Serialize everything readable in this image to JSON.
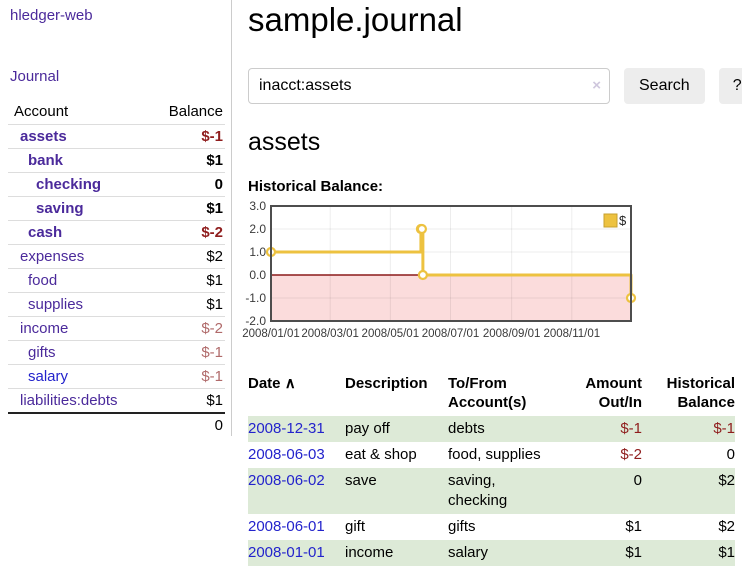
{
  "app": {
    "title": "hledger-web"
  },
  "sidebar": {
    "journal_label": "Journal",
    "accounts_table": {
      "headers": {
        "account": "Account",
        "balance": "Balance"
      },
      "rows": [
        {
          "name": "assets",
          "level": 1,
          "in_query": true,
          "visited": true,
          "balance": "$-1"
        },
        {
          "name": "bank",
          "level": 2,
          "in_query": true,
          "visited": true,
          "balance": "$1"
        },
        {
          "name": "checking",
          "level": 3,
          "in_query": true,
          "visited": true,
          "balance": "0"
        },
        {
          "name": "saving",
          "level": 3,
          "in_query": true,
          "visited": true,
          "balance": "$1"
        },
        {
          "name": "cash",
          "level": 2,
          "in_query": true,
          "visited": true,
          "balance": "$-2"
        },
        {
          "name": "expenses",
          "level": 1,
          "in_query": false,
          "visited": true,
          "balance": "$2"
        },
        {
          "name": "food",
          "level": 2,
          "in_query": false,
          "visited": true,
          "balance": "$1"
        },
        {
          "name": "supplies",
          "level": 2,
          "in_query": false,
          "visited": true,
          "balance": "$1"
        },
        {
          "name": "income",
          "level": 1,
          "in_query": false,
          "visited": true,
          "balance": "$-2"
        },
        {
          "name": "gifts",
          "level": 2,
          "in_query": false,
          "visited": true,
          "balance": "$-1"
        },
        {
          "name": "salary",
          "level": 2,
          "in_query": false,
          "visited": false,
          "balance": "$-1"
        },
        {
          "name": "liabilities:debts",
          "level": 1,
          "in_query": false,
          "visited": true,
          "balance": "$1"
        }
      ],
      "total": "0"
    }
  },
  "header": {
    "title": "sample.journal"
  },
  "search": {
    "value": "inacct:assets",
    "clear_icon": "×",
    "button": "Search",
    "help_button": "?"
  },
  "account_page": {
    "heading": "assets",
    "chart_label": "Historical Balance:"
  },
  "chart_data": {
    "type": "line",
    "title": "Historical Balance",
    "steps": true,
    "xlim": [
      "2008-01-01",
      "2008-12-31"
    ],
    "ylim": [
      -2,
      3
    ],
    "series": [
      {
        "name": "$",
        "color": "#edc240",
        "points": [
          [
            "2008-01-01",
            1
          ],
          [
            "2008-06-01",
            2
          ],
          [
            "2008-06-02",
            2
          ],
          [
            "2008-06-03",
            0
          ],
          [
            "2008-12-31",
            -1
          ]
        ]
      }
    ],
    "x_ticks": [
      {
        "date": "2008-01-01",
        "label": "2008/01/01"
      },
      {
        "date": "2008-03-01",
        "label": "2008/03/01"
      },
      {
        "date": "2008-05-01",
        "label": "2008/05/01"
      },
      {
        "date": "2008-07-01",
        "label": "2008/07/01"
      },
      {
        "date": "2008-09-01",
        "label": "2008/09/01"
      },
      {
        "date": "2008-11-01",
        "label": "2008/11/01"
      }
    ],
    "y_ticks": [
      {
        "value": 3,
        "label": "3.0"
      },
      {
        "value": 2,
        "label": "2.0"
      },
      {
        "value": 1,
        "label": "1.0"
      },
      {
        "value": 0,
        "label": "0.0"
      },
      {
        "value": -1,
        "label": "-1.0"
      },
      {
        "value": -2,
        "label": "-2.0"
      }
    ],
    "legend": [
      {
        "label": "$",
        "color": "#edc240"
      }
    ],
    "legend_position": "top-right",
    "grid": true,
    "grid_color": "#00000012",
    "border_color": "#4d4d4d",
    "zero_line_color": "#8b1a1a",
    "negative_region_color": "#fbdcdc",
    "tick_label_color": "#3a3a3a"
  },
  "register_table": {
    "headers": {
      "date": "Date",
      "sort_indicator": "∧",
      "description": "Description",
      "accounts": "To/From Account(s)",
      "amount": "Amount Out/In",
      "balance": "Historical Balance"
    },
    "rows": [
      {
        "date": "2008-12-31",
        "description": "pay off",
        "accounts": "debts",
        "amount": "$-1",
        "balance": "$-1"
      },
      {
        "date": "2008-06-03",
        "description": "eat & shop",
        "accounts": "food, supplies",
        "amount": "$-2",
        "balance": "0"
      },
      {
        "date": "2008-06-02",
        "description": "save",
        "accounts": "saving, checking",
        "amount": "0",
        "balance": "$2"
      },
      {
        "date": "2008-06-01",
        "description": "gift",
        "accounts": "gifts",
        "amount": "$1",
        "balance": "$2"
      },
      {
        "date": "2008-01-01",
        "description": "income",
        "accounts": "salary",
        "amount": "$1",
        "balance": "$1"
      }
    ]
  },
  "colors": {
    "purple_link": "#4b2a9b",
    "blue_link": "#2323cc",
    "negative_strong": "#8f1d1d",
    "negative_soft": "#b06a6a",
    "row_stripe_green": "#ddead7",
    "button_background": "#ededed",
    "chart_line": "#edc240",
    "chart_negative_region": "#fbdcdc",
    "chart_zero_line": "#8b1a1a"
  }
}
